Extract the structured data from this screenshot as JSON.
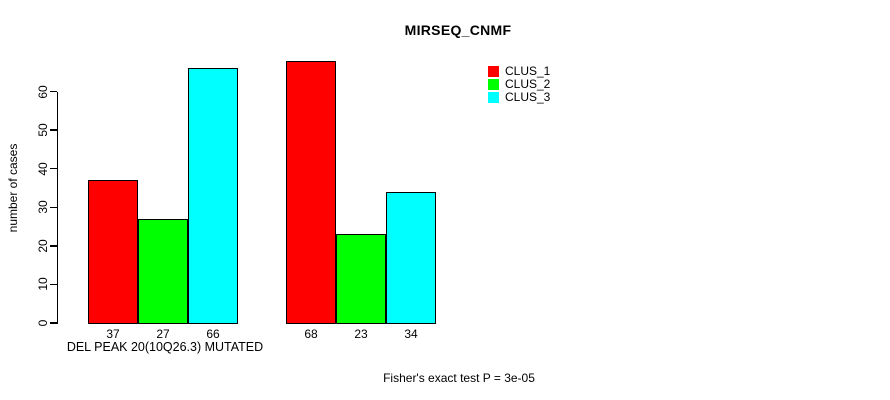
{
  "title": "MIRSEQ_CNMF",
  "footer": "Fisher's exact test P = 3e-05",
  "chart_data": {
    "type": "bar",
    "title": "MIRSEQ_CNMF",
    "xlabel": "DEL PEAK 20(10Q26.3) MUTATED",
    "ylabel": "number of cases",
    "group_count": 2,
    "series": [
      {
        "name": "CLUS_1",
        "color": "#ff0000",
        "values": [
          37,
          68
        ]
      },
      {
        "name": "CLUS_2",
        "color": "#00ff00",
        "values": [
          27,
          23
        ]
      },
      {
        "name": "CLUS_3",
        "color": "#00ffff",
        "values": [
          66,
          34
        ]
      }
    ],
    "bar_labels": [
      [
        37,
        27,
        66
      ],
      [
        68,
        23,
        34
      ]
    ],
    "yticks": [
      0,
      10,
      20,
      30,
      40,
      50,
      60
    ],
    "ylim": [
      0,
      68
    ],
    "grid": false,
    "legend_position": "top-right",
    "annotation": "Fisher's exact test P = 3e-05"
  }
}
